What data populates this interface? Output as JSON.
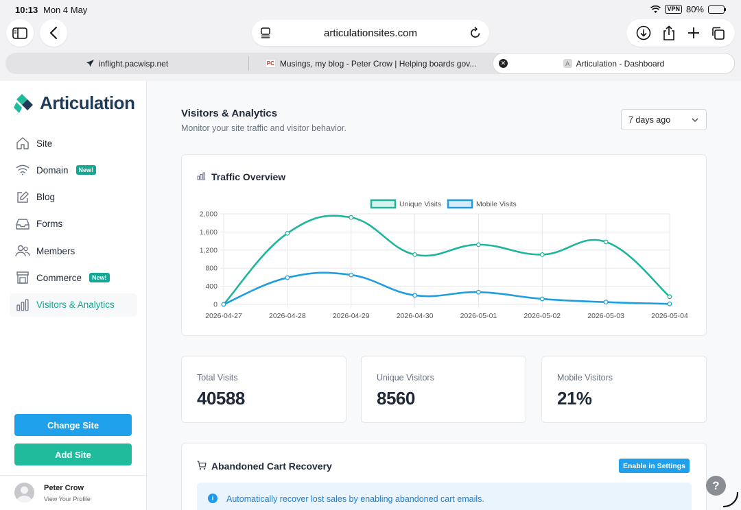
{
  "status_bar": {
    "time": "10:13",
    "date": "Mon 4 May",
    "vpn": "VPN",
    "battery": "80%"
  },
  "browser": {
    "url": "articulationsites.com",
    "tabs": [
      {
        "title": "inflight.pacwisp.net",
        "icon": "airplane-icon"
      },
      {
        "title": "Musings, my blog - Peter Crow | Helping boards gov...",
        "icon": "pc-favicon",
        "favicon_text": "PC"
      },
      {
        "title": "Articulation - Dashboard",
        "icon": "a-favicon",
        "favicon_text": "A"
      }
    ]
  },
  "sidebar": {
    "brand": "Articulation",
    "nav": [
      {
        "label": "Site",
        "icon": "home-icon",
        "badge": ""
      },
      {
        "label": "Domain",
        "icon": "wifi-icon",
        "badge": "New!"
      },
      {
        "label": "Blog",
        "icon": "edit-icon",
        "badge": ""
      },
      {
        "label": "Forms",
        "icon": "inbox-icon",
        "badge": ""
      },
      {
        "label": "Members",
        "icon": "users-icon",
        "badge": ""
      },
      {
        "label": "Commerce",
        "icon": "store-icon",
        "badge": "New!"
      },
      {
        "label": "Visitors & Analytics",
        "icon": "bar-chart-icon",
        "badge": "",
        "active": true
      }
    ],
    "change_site": "Change Site",
    "add_site": "Add Site",
    "profile": {
      "name": "Peter Crow",
      "link": "View Your Profile"
    }
  },
  "page": {
    "title": "Visitors & Analytics",
    "subtitle": "Monitor your site traffic and visitor behavior.",
    "range": "7 days ago"
  },
  "traffic": {
    "title": "Traffic Overview",
    "chart_data": {
      "type": "line",
      "x": [
        "2026-04-27",
        "2026-04-28",
        "2026-04-29",
        "2026-04-30",
        "2026-05-01",
        "2026-05-02",
        "2026-05-03",
        "2026-05-04"
      ],
      "series": [
        {
          "name": "Unique Visits",
          "color": "#1fb59a",
          "values": [
            0,
            1570,
            1920,
            1100,
            1320,
            1100,
            1380,
            170
          ]
        },
        {
          "name": "Mobile Visits",
          "color": "#1e9ee0",
          "values": [
            0,
            590,
            650,
            200,
            270,
            120,
            50,
            10
          ]
        }
      ],
      "yticks": [
        "0",
        "400",
        "800",
        "1,200",
        "1,600",
        "2,000"
      ],
      "ylim": [
        0,
        2000
      ],
      "legend": "top-center",
      "grid": true
    }
  },
  "stats": [
    {
      "label": "Total Visits",
      "value": "40588"
    },
    {
      "label": "Unique Visitors",
      "value": "8560"
    },
    {
      "label": "Mobile Visitors",
      "value": "21%"
    }
  ],
  "cart": {
    "title": "Abandoned Cart Recovery",
    "button": "Enable in Settings",
    "info": "Automatically recover lost sales by enabling abandoned cart emails."
  },
  "help": "?"
}
